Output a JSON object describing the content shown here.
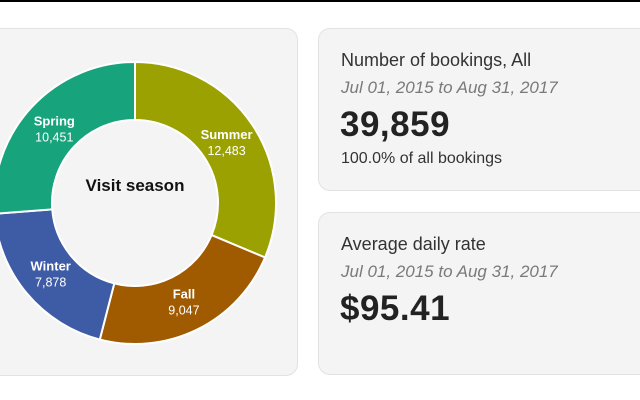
{
  "season_chart": {
    "chart_data": {
      "type": "pie",
      "title": "Visit season",
      "slices": [
        {
          "label": "Spring",
          "value": 10451,
          "display": "10,451",
          "color": "#17a37b"
        },
        {
          "label": "Summer",
          "value": 12483,
          "display": "12,483",
          "color": "#9aa100"
        },
        {
          "label": "Fall",
          "value": 9047,
          "display": "9,047",
          "color": "#a05a00"
        },
        {
          "label": "Winter",
          "value": 7878,
          "display": "7,878",
          "color": "#3e5ba6"
        }
      ]
    }
  },
  "bookings_card": {
    "label": "Number of bookings, All",
    "date_range": "Jul 01, 2015 to Aug 31, 2017",
    "value": "39,859",
    "subtext": "100.0% of all bookings"
  },
  "adr_card": {
    "label": "Average daily rate",
    "date_range": "Jul 01, 2015 to Aug 31, 2017",
    "value": "$95.41"
  }
}
